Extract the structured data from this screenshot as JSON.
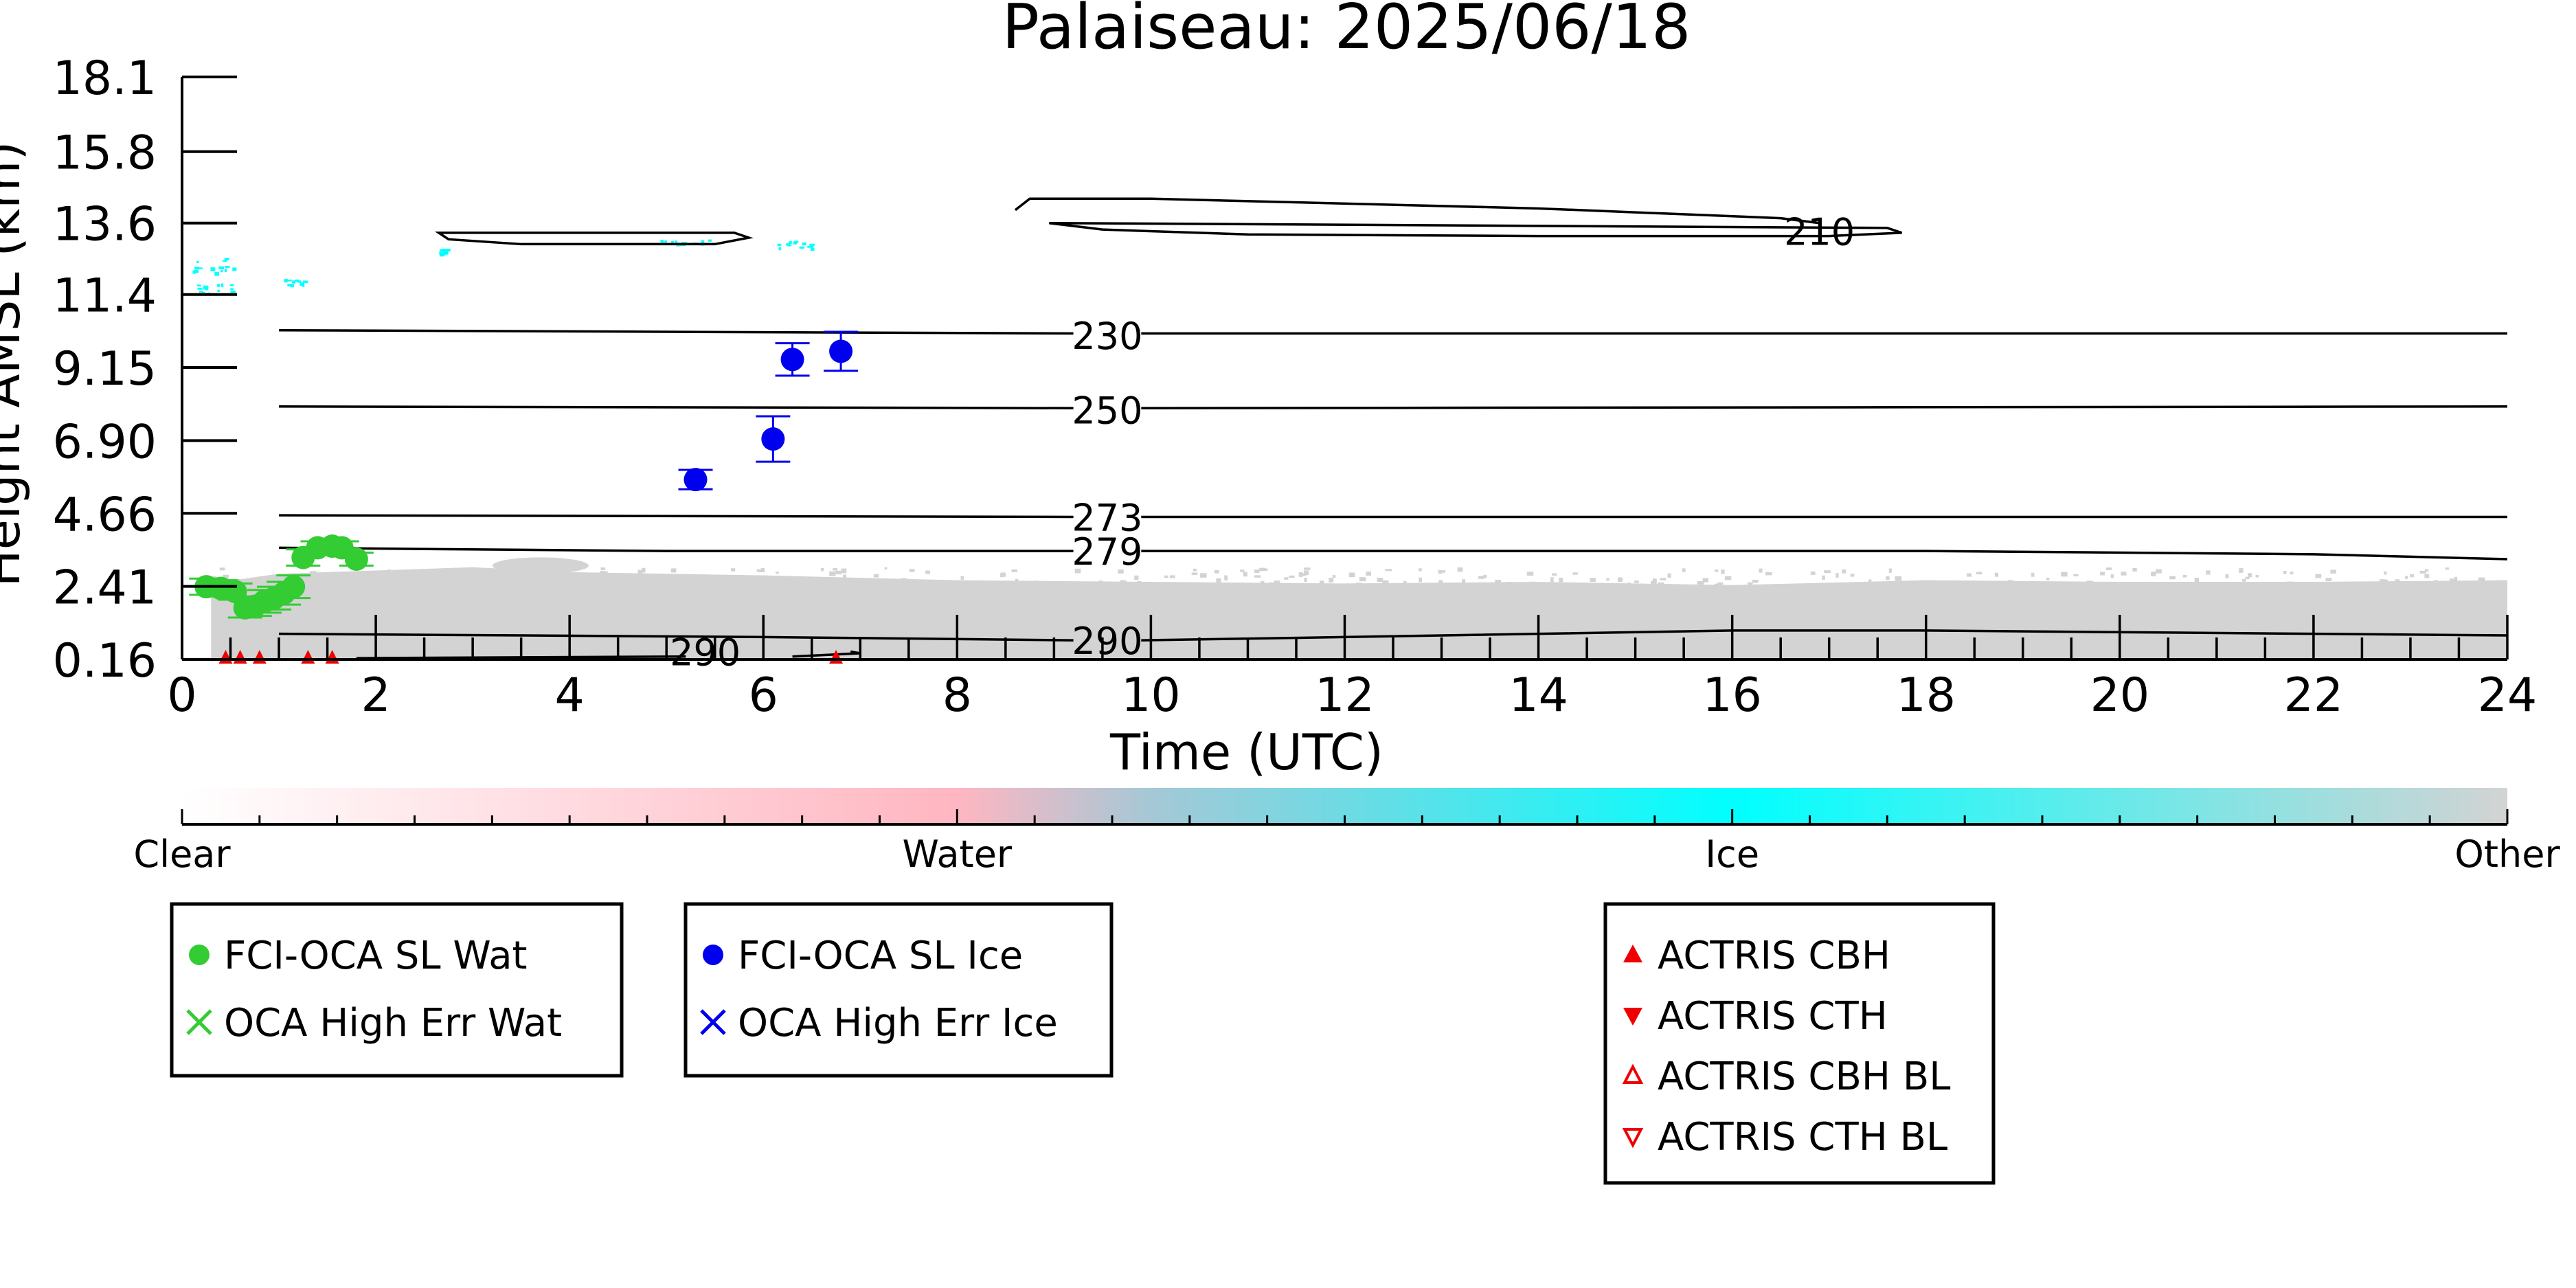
{
  "chart_data": {
    "type": "scatter",
    "title": "Palaiseau: 2025/06/18",
    "xlabel": "Time (UTC)",
    "ylabel": "Height AMSL (km)",
    "xlim": [
      0,
      24
    ],
    "ylim": [
      0.16,
      18.1
    ],
    "x_ticks": [
      0,
      2,
      4,
      6,
      8,
      10,
      12,
      14,
      16,
      18,
      20,
      22,
      24
    ],
    "y_ticks": [
      "0.16",
      "2.41",
      "4.66",
      "6.90",
      "9.15",
      "11.4",
      "13.6",
      "15.8",
      "18.1"
    ],
    "grid": false,
    "series": [
      {
        "name": "FCI-OCA SL Wat",
        "marker": "filled-circle",
        "color": "#33cc33",
        "points": [
          {
            "x": 0.25,
            "y": 2.4,
            "err": 0.25
          },
          {
            "x": 0.4,
            "y": 2.35,
            "err": 0.25
          },
          {
            "x": 0.55,
            "y": 2.25,
            "err": 0.25
          },
          {
            "x": 0.65,
            "y": 1.75,
            "err": 0.3
          },
          {
            "x": 0.75,
            "y": 1.8,
            "err": 0.3
          },
          {
            "x": 0.85,
            "y": 1.95,
            "err": 0.35
          },
          {
            "x": 0.95,
            "y": 2.05,
            "err": 0.35
          },
          {
            "x": 1.05,
            "y": 2.2,
            "err": 0.35
          },
          {
            "x": 1.15,
            "y": 2.4,
            "err": 0.35
          },
          {
            "x": 1.25,
            "y": 3.3,
            "err": 0.25
          },
          {
            "x": 1.4,
            "y": 3.6,
            "err": 0.2
          },
          {
            "x": 1.55,
            "y": 3.65,
            "err": 0.2
          },
          {
            "x": 1.65,
            "y": 3.6,
            "err": 0.2
          },
          {
            "x": 1.8,
            "y": 3.25,
            "err": 0.2
          }
        ]
      },
      {
        "name": "OCA High Err Wat",
        "marker": "x",
        "color": "#33cc33",
        "points": []
      },
      {
        "name": "FCI-OCA SL Ice",
        "marker": "filled-circle",
        "color": "#0000ee",
        "points": [
          {
            "x": 5.3,
            "y": 5.7,
            "err": 0.3
          },
          {
            "x": 6.1,
            "y": 6.95,
            "err": 0.7
          },
          {
            "x": 6.3,
            "y": 9.4,
            "err": 0.5
          },
          {
            "x": 6.8,
            "y": 9.65,
            "err": 0.6
          }
        ]
      },
      {
        "name": "OCA High Err Ice",
        "marker": "x",
        "color": "#0000ee",
        "points": []
      },
      {
        "name": "ACTRIS CBH",
        "marker": "filled-triangle-up",
        "color": "#ee0000",
        "points": [
          {
            "x": 0.45,
            "y": 0.2
          },
          {
            "x": 0.6,
            "y": 0.2
          },
          {
            "x": 0.8,
            "y": 0.2
          },
          {
            "x": 1.3,
            "y": 0.2
          },
          {
            "x": 1.55,
            "y": 0.2
          },
          {
            "x": 6.75,
            "y": 0.2
          }
        ]
      },
      {
        "name": "ACTRIS CTH",
        "marker": "filled-triangle-down",
        "color": "#ee0000",
        "points": []
      },
      {
        "name": "ACTRIS CBH BL",
        "marker": "open-triangle-up",
        "color": "#ee0000",
        "points": []
      },
      {
        "name": "ACTRIS CTH BL",
        "marker": "open-triangle-down",
        "color": "#ee0000",
        "points": []
      }
    ],
    "temperature_contours": [
      {
        "label": "210",
        "label_x": 16.9,
        "label_y": 13.35
      },
      {
        "label": "230",
        "label_x": 9.55,
        "label_y": 10.15,
        "line": [
          [
            1,
            10.3
          ],
          [
            9.2,
            10.2
          ],
          [
            9.9,
            10.2
          ],
          [
            24,
            10.2
          ]
        ]
      },
      {
        "label": "250",
        "label_x": 9.55,
        "label_y": 7.85,
        "line": [
          [
            1,
            7.95
          ],
          [
            9.2,
            7.9
          ],
          [
            9.9,
            7.9
          ],
          [
            24,
            7.95
          ]
        ]
      },
      {
        "label": "273",
        "label_x": 9.55,
        "label_y": 4.55,
        "line": [
          [
            1,
            4.6
          ],
          [
            9.2,
            4.55
          ],
          [
            9.9,
            4.55
          ],
          [
            24,
            4.55
          ]
        ]
      },
      {
        "label": "279",
        "label_x": 9.55,
        "label_y": 3.5,
        "line": [
          [
            1,
            3.6
          ],
          [
            5,
            3.5
          ],
          [
            9.2,
            3.5
          ],
          [
            9.9,
            3.5
          ],
          [
            18,
            3.5
          ],
          [
            22,
            3.4
          ],
          [
            24,
            3.25
          ]
        ]
      },
      {
        "label": "290",
        "label_x": 9.55,
        "label_y": 0.75,
        "line": [
          [
            1,
            0.95
          ],
          [
            6,
            0.85
          ],
          [
            9.2,
            0.75
          ],
          [
            9.9,
            0.75
          ],
          [
            12,
            0.85
          ],
          [
            16,
            1.05
          ],
          [
            18,
            1.05
          ],
          [
            22,
            0.95
          ],
          [
            24,
            0.9
          ]
        ]
      },
      {
        "label": "290",
        "label_x": 5.4,
        "label_y": 0.4
      }
    ],
    "colorbar": {
      "labels": [
        "Clear",
        "Water",
        "Ice",
        "Other"
      ],
      "colors": [
        "#ffffff",
        "#ffb6c1",
        "#00ffff",
        "#d3d3d3"
      ]
    }
  }
}
